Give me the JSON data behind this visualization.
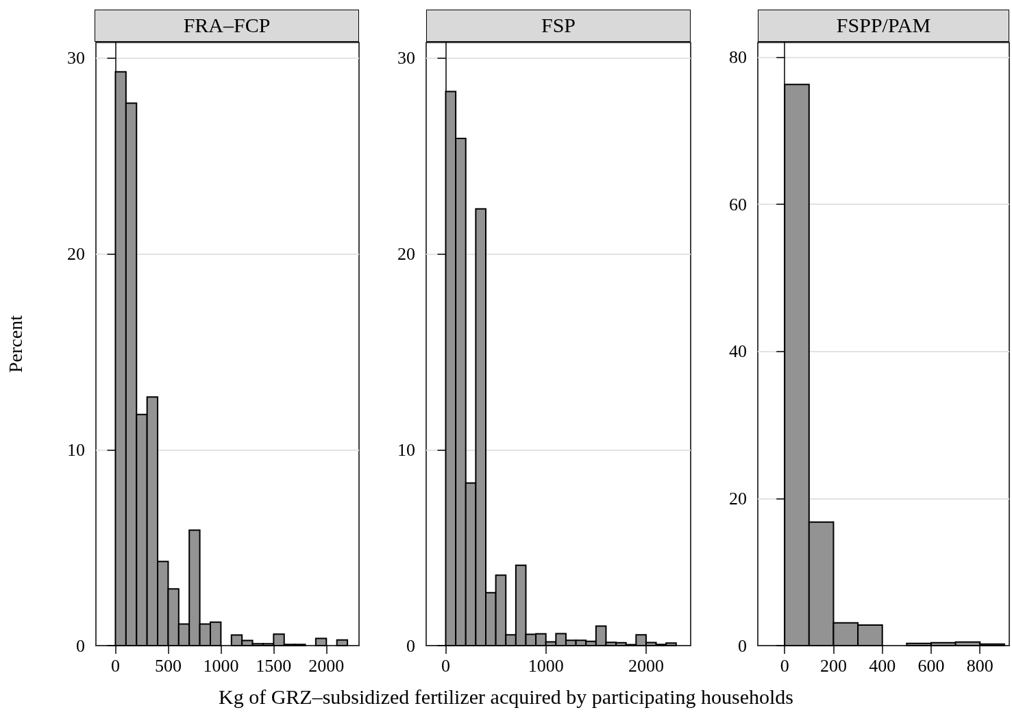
{
  "chart_data": [
    {
      "type": "histogram",
      "title": "FRA–FCP",
      "ylabel": "Percent",
      "color": "#939393",
      "bins": [
        0,
        100,
        200,
        300,
        400,
        500,
        600,
        700,
        800,
        900,
        1000,
        1100,
        1200,
        1300,
        1400,
        1500,
        1600,
        1700,
        1800,
        1900,
        2000,
        2100,
        2200
      ],
      "values": [
        29.3,
        27.7,
        11.8,
        12.7,
        4.3,
        2.9,
        1.1,
        5.9,
        1.1,
        1.2,
        0,
        0.54,
        0.26,
        0.1,
        0.1,
        0.59,
        0.06,
        0.06,
        0,
        0.37,
        0,
        0.29
      ],
      "xlim": [
        -185,
        2310
      ],
      "ylim": [
        0,
        30.8
      ],
      "xticks": [
        0,
        500,
        1000,
        1500,
        2000
      ],
      "yticks": [
        0,
        10,
        20,
        30
      ],
      "grid": "y"
    },
    {
      "type": "histogram",
      "title": "FSP",
      "xlabel": "Kg of GRZ–subsidized fertilizer acquired by participating households",
      "color": "#939393",
      "bins": [
        0,
        100,
        200,
        300,
        400,
        500,
        600,
        700,
        800,
        900,
        1000,
        1100,
        1200,
        1300,
        1400,
        1500,
        1600,
        1700,
        1800,
        1900,
        2000,
        2100,
        2200,
        2300
      ],
      "values": [
        28.3,
        25.9,
        8.3,
        22.3,
        2.7,
        3.6,
        0.55,
        4.1,
        0.58,
        0.6,
        0.19,
        0.61,
        0.27,
        0.27,
        0.22,
        1.0,
        0.17,
        0.15,
        0.05,
        0.55,
        0.16,
        0.06,
        0.13
      ],
      "xlim": [
        -195,
        2445
      ],
      "ylim": [
        0,
        30.8
      ],
      "xticks": [
        0,
        1000,
        2000
      ],
      "yticks": [
        0,
        10,
        20,
        30
      ],
      "grid": "y"
    },
    {
      "type": "histogram",
      "title": "FSPP/PAM",
      "color": "#939393",
      "bins": [
        0,
        100,
        200,
        300,
        400,
        500,
        600,
        700,
        800,
        900
      ],
      "values": [
        76.3,
        16.8,
        3.1,
        2.8,
        0,
        0.3,
        0.4,
        0.5,
        0.2
      ],
      "xlim": [
        -110,
        920
      ],
      "ylim": [
        0,
        82
      ],
      "xticks": [
        0,
        200,
        400,
        600,
        800
      ],
      "yticks": [
        0,
        20,
        40,
        60,
        80
      ],
      "grid": "y"
    }
  ]
}
